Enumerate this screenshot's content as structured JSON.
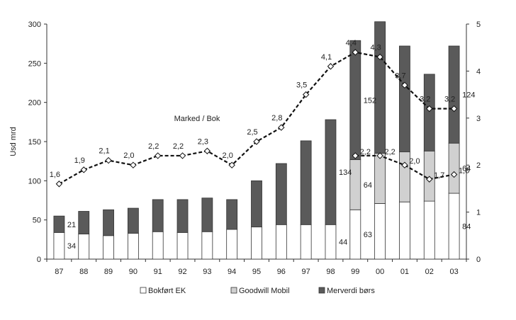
{
  "chart_data": {
    "type": "bar",
    "stacked": true,
    "categories": [
      "87",
      "88",
      "89",
      "90",
      "91",
      "92",
      "93",
      "94",
      "95",
      "96",
      "97",
      "98",
      "99",
      "00",
      "01",
      "02",
      "03"
    ],
    "series": [
      {
        "name": "Bokført EK",
        "color": "#ffffff",
        "values": [
          34,
          32,
          30,
          33,
          35,
          34,
          35,
          38,
          41,
          44,
          44,
          44,
          63,
          71,
          73,
          74,
          84
        ]
      },
      {
        "name": "Goodwill Mobil",
        "color": "#d0d0d0",
        "values": [
          0,
          0,
          0,
          0,
          0,
          0,
          0,
          0,
          0,
          0,
          0,
          0,
          64,
          64,
          64,
          64,
          64
        ]
      },
      {
        "name": "Merverdi børs",
        "color": "#5a5a5a",
        "values": [
          21,
          29,
          33,
          32,
          41,
          42,
          43,
          38,
          59,
          78,
          107,
          134,
          152,
          168,
          135,
          98,
          124
        ]
      }
    ],
    "bar_labels": [
      {
        "index": 0,
        "series": 0,
        "text": "34"
      },
      {
        "index": 0,
        "series": 2,
        "text": "21"
      },
      {
        "index": 11,
        "series": 0,
        "text": "44"
      },
      {
        "index": 11,
        "series": 2,
        "text": "134"
      },
      {
        "index": 12,
        "series": 0,
        "text": "63"
      },
      {
        "index": 12,
        "series": 1,
        "text": "64"
      },
      {
        "index": 12,
        "series": 2,
        "text": "152"
      },
      {
        "index": 16,
        "series": 0,
        "text": "84"
      },
      {
        "index": 16,
        "series": 1,
        "text": "64"
      },
      {
        "index": 16,
        "series": 2,
        "text": "124"
      }
    ],
    "ratio_lines": [
      {
        "name": "Marked / Bok",
        "values": [
          1.6,
          1.9,
          2.1,
          2.0,
          2.2,
          2.2,
          2.3,
          2.0,
          2.5,
          2.8,
          3.5,
          4.1,
          4.4,
          4.3,
          3.7,
          3.2,
          3.2
        ],
        "labels": [
          "1,6",
          "1,9",
          "2,1",
          "2,0",
          "2,2",
          "2,2",
          "2,3",
          "2,0",
          "2,5",
          "2,8",
          "3,5",
          "4,1",
          "4,4",
          "4,3",
          "3,7",
          "3,2",
          "3,2"
        ]
      },
      {
        "name": "",
        "start_index": 12,
        "values": [
          2.2,
          2.2,
          2.0,
          1.7,
          1.8
        ],
        "labels": [
          "2,2",
          "2,2",
          "2,0",
          "1,7",
          "1,8"
        ]
      }
    ],
    "line_annotation": "Marked / Bok",
    "ylabel": "Usd mrd",
    "ylim": [
      0,
      300
    ],
    "yticks": [
      0,
      50,
      100,
      150,
      200,
      250,
      300
    ],
    "y2lim": [
      0,
      5
    ],
    "y2ticks": [
      0,
      1,
      2,
      3,
      4,
      5
    ],
    "legend": [
      "Bokført EK",
      "Goodwill Mobil",
      "Merverdi børs"
    ],
    "legend_position": "bottom"
  }
}
